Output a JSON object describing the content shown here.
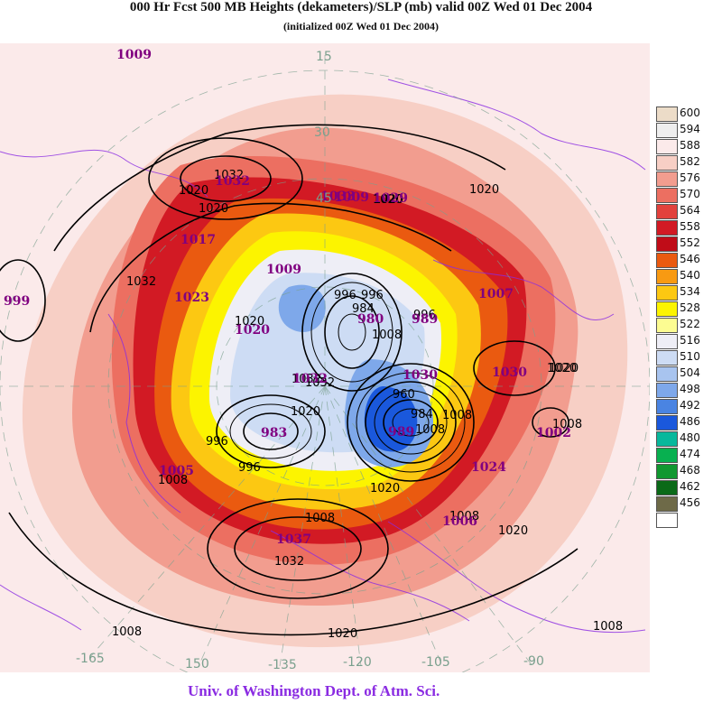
{
  "title": "000 Hr Fcst 500 MB Heights (dekameters)/SLP (mb) valid 00Z Wed 01 Dec 2004",
  "subtitle": "(initialized 00Z Wed 01 Dec 2004)",
  "credit": "Univ. of Washington Dept. of Atm. Sci.",
  "legend": [
    {
      "value": "600",
      "color": "#ecdcc8"
    },
    {
      "value": "594",
      "color": "#eeeeee"
    },
    {
      "value": "588",
      "color": "#fbeaea"
    },
    {
      "value": "582",
      "color": "#f7cfc5"
    },
    {
      "value": "576",
      "color": "#f29d8f"
    },
    {
      "value": "570",
      "color": "#ec6f61"
    },
    {
      "value": "564",
      "color": "#e2413c"
    },
    {
      "value": "558",
      "color": "#d21a24"
    },
    {
      "value": "552",
      "color": "#c00c18"
    },
    {
      "value": "546",
      "color": "#ea5a10"
    },
    {
      "value": "540",
      "color": "#f89a12"
    },
    {
      "value": "534",
      "color": "#fcc812"
    },
    {
      "value": "528",
      "color": "#fcf400"
    },
    {
      "value": "522",
      "color": "#fcfc92"
    },
    {
      "value": "516",
      "color": "#eeeef6"
    },
    {
      "value": "510",
      "color": "#cddcf4"
    },
    {
      "value": "504",
      "color": "#a8c4ef"
    },
    {
      "value": "498",
      "color": "#7ea8ea"
    },
    {
      "value": "492",
      "color": "#4a84e2"
    },
    {
      "value": "486",
      "color": "#1a58dc"
    },
    {
      "value": "480",
      "color": "#08b89c"
    },
    {
      "value": "474",
      "color": "#08b050"
    },
    {
      "value": "468",
      "color": "#109830"
    },
    {
      "value": "462",
      "color": "#0a6a18"
    },
    {
      "value": "456",
      "color": "#6e6a48"
    },
    {
      "value": "",
      "color": "#ffffff"
    }
  ],
  "longitude_labels": [
    "-165",
    "150",
    "-135",
    "-120",
    "-105",
    "-90",
    "15",
    "30",
    "45"
  ],
  "slp_labels": [
    "1032",
    "1020",
    "1020",
    "1032",
    "1008",
    "1008",
    "1020",
    "1020",
    "1020",
    "1032",
    "996",
    "996",
    "1020",
    "1008",
    "1020",
    "996",
    "984",
    "1020",
    "1008",
    "996",
    "1032",
    "1008",
    "1020",
    "1020",
    "1008",
    "1008",
    "1020",
    "1032",
    "996",
    "984",
    "960",
    "1020",
    "1008",
    "1008"
  ],
  "pressure_centers": [
    "1009",
    "1009",
    "1009",
    "1017",
    "1032",
    "1023",
    "1029",
    "999",
    "1020",
    "1032",
    "983",
    "980",
    "989",
    "1007",
    "1030",
    "1030",
    "1002",
    "1024",
    "1005",
    "1037",
    "1006",
    "1033",
    "989"
  ]
}
